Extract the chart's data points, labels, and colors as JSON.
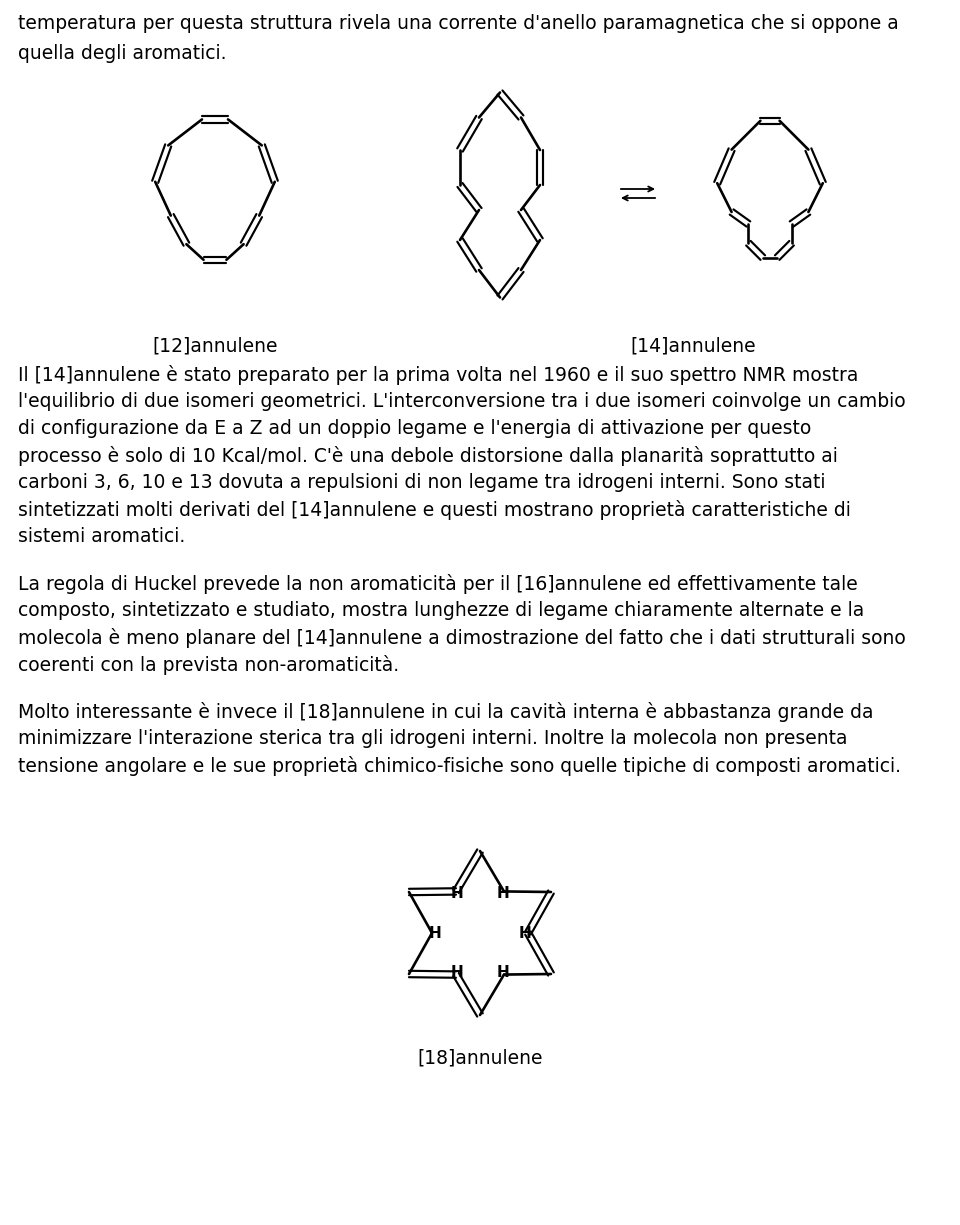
{
  "bg_color": "#ffffff",
  "text_color": "#000000",
  "font_size": 13.5,
  "label_font_size": 13.5,
  "line1": "temperatura per questa struttura rivela una corrente d'anello paramagnetica che si oppone a",
  "line2": "quella degli aromatici.",
  "label_12": "[12]annulene",
  "label_14": "[14]annulene",
  "label_18": "[18]annulene",
  "para1_lines": [
    "Il [14]annulene è stato preparato per la prima volta nel 1960 e il suo spettro NMR mostra",
    "l'equilibrio di due isomeri geometrici. L'interconversione tra i due isomeri coinvolge un cambio",
    "di configurazione da E a Z ad un doppio legame e l'energia di attivazione per questo",
    "processo è solo di 10 Kcal/mol. C'è una debole distorsione dalla planarità soprattutto ai",
    "carboni 3, 6, 10 e 13 dovuta a repulsioni di non legame tra idrogeni interni. Sono stati",
    "sintetizzati molti derivati del [14]annulene e questi mostrano proprietà caratteristiche di",
    "sistemi aromatici."
  ],
  "para2_lines": [
    "La regola di Huckel prevede la non aromaticità per il [16]annulene ed effettivamente tale",
    "composto, sintetizzato e studiato, mostra lunghezze di legame chiaramente alternate e la",
    "molecola è meno planare del [14]annulene a dimostrazione del fatto che i dati strutturali sono",
    "coerenti con la prevista non-aromaticità."
  ],
  "para3_lines": [
    "Molto interessante è invece il [18]annulene in cui la cavità interna è abbastanza grande da",
    "minimizzare l'interazione sterica tra gli idrogeni interni. Inoltre la molecola non presenta",
    "tensione angolare e le sue proprietà chimico-fisiche sono quelle tipiche di composti aromatici."
  ]
}
